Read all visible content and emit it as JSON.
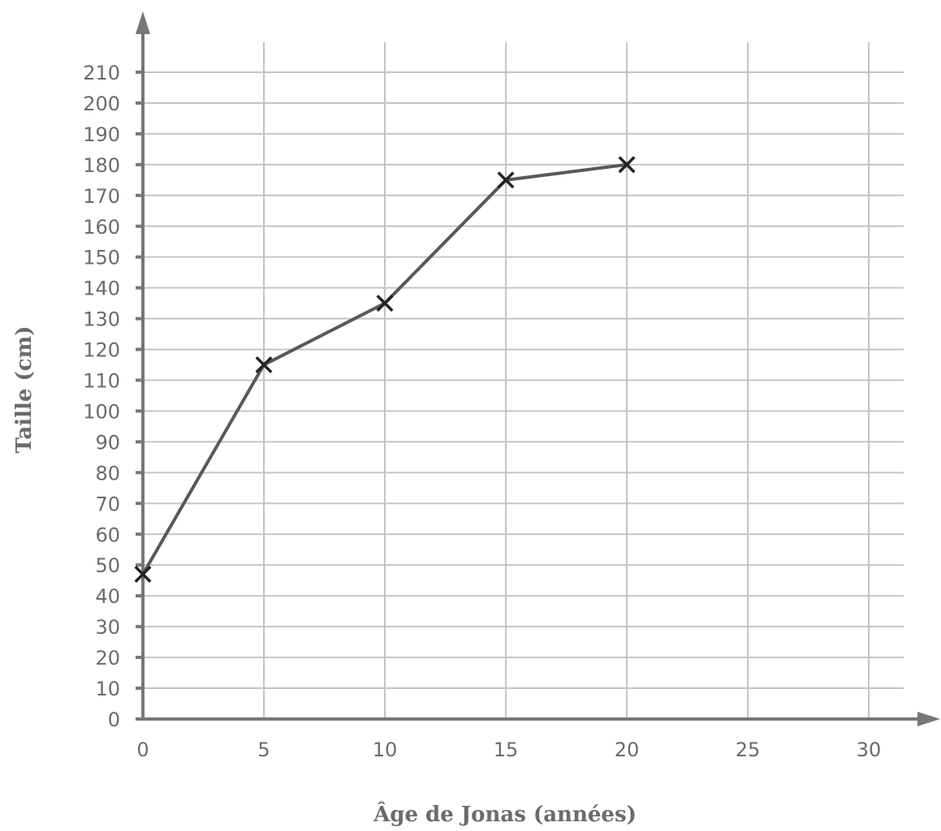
{
  "chart_data": {
    "type": "line",
    "title": "",
    "xlabel": "Âge de Jonas (années)",
    "ylabel": "Taille (cm)",
    "xlim": [
      0,
      30
    ],
    "ylim": [
      0,
      210
    ],
    "x_ticks": [
      0,
      5,
      10,
      15,
      20,
      25,
      30
    ],
    "y_ticks": [
      0,
      10,
      20,
      30,
      40,
      50,
      60,
      70,
      80,
      90,
      100,
      110,
      120,
      130,
      140,
      150,
      160,
      170,
      180,
      190,
      200,
      210
    ],
    "grid": true,
    "marker": "x",
    "series": [
      {
        "x": [
          0,
          5,
          10,
          15,
          20
        ],
        "values": [
          47,
          115,
          135,
          175,
          180
        ]
      }
    ],
    "colors": {
      "axis": "#77777a",
      "grid": "#c4c4c4",
      "line": "#58585b",
      "marker": "#222224",
      "text": "#6b6b6e"
    }
  }
}
